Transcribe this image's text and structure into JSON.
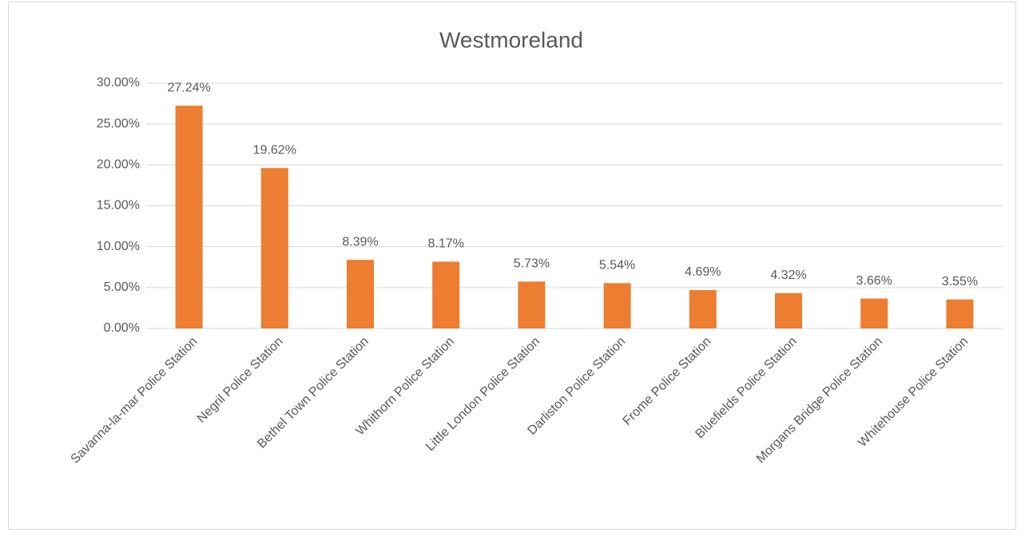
{
  "chart_data": {
    "type": "bar",
    "title": "Westmoreland",
    "categories": [
      "Savanna-la-mar Police Station",
      "Negril Police Station",
      "Bethel Town Police Station",
      "Whithorn Police Station",
      "Little London Police Station",
      "Darliston Police Station",
      "Frome Police Station",
      "Bluefields Police Station",
      "Morgans Bridge Police Station",
      "Whitehouse Police Station"
    ],
    "values": [
      27.24,
      19.62,
      8.39,
      8.17,
      5.73,
      5.54,
      4.69,
      4.32,
      3.66,
      3.55
    ],
    "value_labels": [
      "27.24%",
      "19.62%",
      "8.39%",
      "8.17%",
      "5.73%",
      "5.54%",
      "4.69%",
      "4.32%",
      "3.66%",
      "3.55%"
    ],
    "color": "#ed7d31",
    "ylim": [
      0,
      30
    ],
    "yticks": [
      {
        "value": 0,
        "label": "0.00%"
      },
      {
        "value": 5,
        "label": "5.00%"
      },
      {
        "value": 10,
        "label": "10.00%"
      },
      {
        "value": 15,
        "label": "15.00%"
      },
      {
        "value": 20,
        "label": "20.00%"
      },
      {
        "value": 25,
        "label": "25.00%"
      },
      {
        "value": 30,
        "label": "30.00%"
      }
    ],
    "grid": true
  }
}
